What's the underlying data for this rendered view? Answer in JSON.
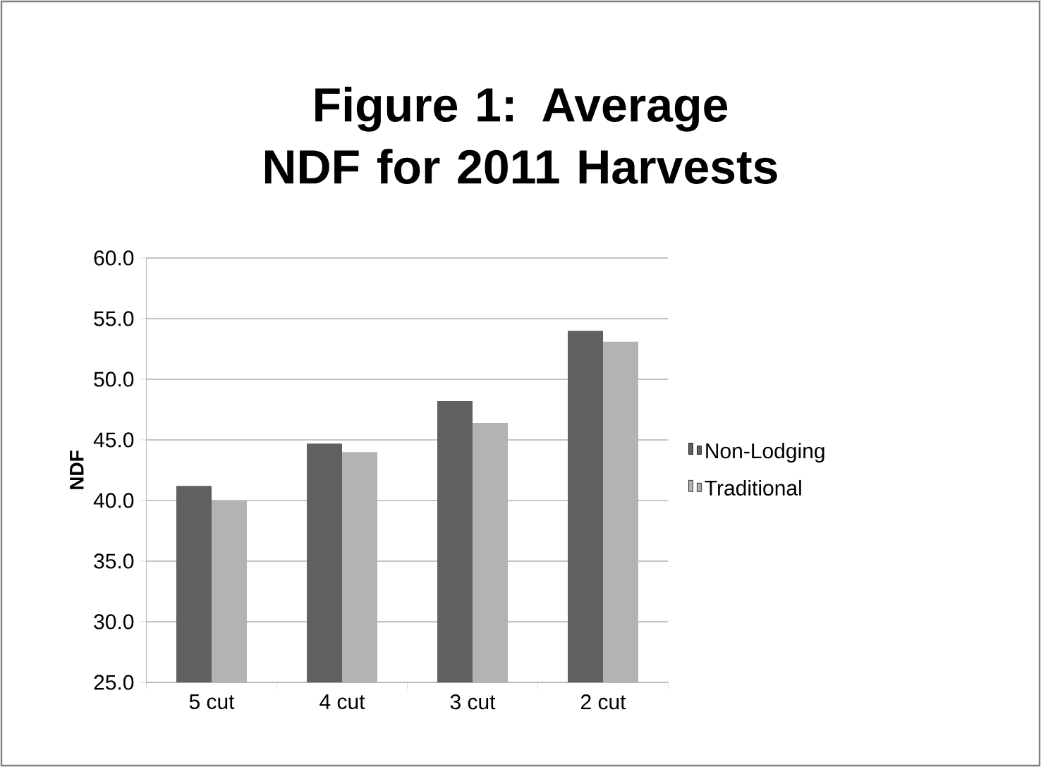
{
  "chart_data": {
    "type": "bar",
    "title": "Figure 1:  Average NDF for 2011 Harvests",
    "ylabel": "NDF",
    "categories": [
      "5 cut",
      "4 cut",
      "3 cut",
      "2 cut"
    ],
    "series": [
      {
        "name": "Non-Lodging",
        "color": "#606060",
        "values": [
          41.2,
          44.7,
          48.2,
          54.0
        ]
      },
      {
        "name": "Traditional",
        "color": "#b3b3b3",
        "values": [
          40.0,
          44.0,
          46.4,
          53.1
        ]
      }
    ],
    "ylim": [
      25,
      60
    ],
    "yticks": [
      {
        "value": 25,
        "label": "25.0"
      },
      {
        "value": 30,
        "label": "30.0"
      },
      {
        "value": 35,
        "label": "35.0"
      },
      {
        "value": 40,
        "label": "40.0"
      },
      {
        "value": 45,
        "label": "45.0"
      },
      {
        "value": 50,
        "label": "50.0"
      },
      {
        "value": 55,
        "label": "55.0"
      },
      {
        "value": 60,
        "label": "60.0"
      }
    ],
    "grid": "y",
    "legend": "right"
  }
}
